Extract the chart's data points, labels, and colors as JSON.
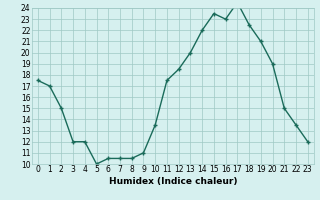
{
  "x": [
    0,
    1,
    2,
    3,
    4,
    5,
    6,
    7,
    8,
    9,
    10,
    11,
    12,
    13,
    14,
    15,
    16,
    17,
    18,
    19,
    20,
    21,
    22,
    23
  ],
  "y": [
    17.5,
    17.0,
    15.0,
    12.0,
    12.0,
    10.0,
    10.5,
    10.5,
    10.5,
    11.0,
    13.5,
    17.5,
    18.5,
    20.0,
    22.0,
    23.5,
    23.0,
    24.5,
    22.5,
    21.0,
    19.0,
    15.0,
    13.5,
    12.0
  ],
  "line_color": "#1a6b5a",
  "marker": "+",
  "markersize": 3,
  "linewidth": 1.0,
  "bg_color": "#d6f0ef",
  "grid_color": "#9ec9c5",
  "xlabel": "Humidex (Indice chaleur)",
  "xlim": [
    -0.5,
    23.5
  ],
  "ylim": [
    10,
    24
  ],
  "yticks": [
    10,
    11,
    12,
    13,
    14,
    15,
    16,
    17,
    18,
    19,
    20,
    21,
    22,
    23,
    24
  ],
  "xticks": [
    0,
    1,
    2,
    3,
    4,
    5,
    6,
    7,
    8,
    9,
    10,
    11,
    12,
    13,
    14,
    15,
    16,
    17,
    18,
    19,
    20,
    21,
    22,
    23
  ],
  "tick_fontsize": 5.5,
  "label_fontsize": 6.5
}
